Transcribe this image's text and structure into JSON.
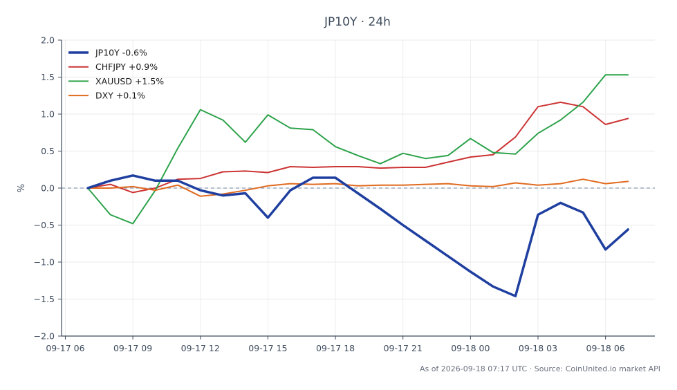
{
  "chart_data": {
    "type": "line",
    "title": "JP10Y · 24h",
    "xlabel": "",
    "ylabel": "%",
    "ylim": [
      -2.0,
      2.0
    ],
    "yticks": [
      "2.0",
      "1.5",
      "1.0",
      "0.5",
      "0.0",
      "−0.5",
      "−1.0",
      "−1.5",
      "−2.0"
    ],
    "ytick_values": [
      2.0,
      1.5,
      1.0,
      0.5,
      0.0,
      -0.5,
      -1.0,
      -1.5,
      -2.0
    ],
    "xticks": [
      "09-17 06",
      "09-17 09",
      "09-17 12",
      "09-17 15",
      "09-17 18",
      "09-17 21",
      "09-18 00",
      "09-18 03",
      "09-18 06"
    ],
    "grid": true,
    "zero_line": true,
    "legend_position": "top-left",
    "x": [
      "09-17 07",
      "09-17 08",
      "09-17 09",
      "09-17 10",
      "09-17 11",
      "09-17 12",
      "09-17 13",
      "09-17 14",
      "09-17 15",
      "09-17 16",
      "09-17 17",
      "09-17 18",
      "09-17 19",
      "09-17 20",
      "09-17 21",
      "09-17 22",
      "09-17 23",
      "09-18 00",
      "09-18 01",
      "09-18 02",
      "09-18 03",
      "09-18 04",
      "09-18 05",
      "09-18 06",
      "09-18 07"
    ],
    "series": [
      {
        "name": "JP10Y -0.6%",
        "color": "#1f3fa0",
        "width": 3.5,
        "values": [
          0.0,
          0.1,
          0.17,
          0.1,
          0.1,
          -0.03,
          -0.1,
          -0.07,
          -0.4,
          -0.03,
          0.14,
          0.14,
          -0.07,
          -0.28,
          -0.5,
          -0.71,
          -0.92,
          -1.13,
          -1.33,
          -1.46,
          -0.36,
          -0.2,
          -0.33,
          -0.83,
          -0.56
        ]
      },
      {
        "name": "CHFJPY +0.9%",
        "color": "#cc3333",
        "width": 2,
        "values": [
          0.0,
          0.05,
          -0.06,
          0.0,
          0.12,
          0.13,
          0.22,
          0.23,
          0.21,
          0.29,
          0.28,
          0.29,
          0.29,
          0.27,
          0.28,
          0.28,
          0.35,
          0.42,
          0.45,
          0.69,
          1.1,
          1.16,
          1.1,
          0.86,
          0.94
        ]
      },
      {
        "name": "XAUUSD +1.5%",
        "color": "#2ca24a",
        "width": 2,
        "values": [
          0.0,
          -0.36,
          -0.48,
          -0.03,
          0.54,
          1.06,
          0.92,
          0.62,
          0.99,
          0.81,
          0.79,
          0.56,
          0.44,
          0.33,
          0.47,
          0.4,
          0.44,
          0.67,
          0.48,
          0.46,
          0.74,
          0.92,
          1.16,
          1.53,
          1.53
        ]
      },
      {
        "name": "DXY +0.1%",
        "color": "#e06a1f",
        "width": 2,
        "values": [
          0.0,
          0.0,
          0.02,
          -0.03,
          0.04,
          -0.11,
          -0.08,
          -0.03,
          0.03,
          0.06,
          0.05,
          0.06,
          0.03,
          0.04,
          0.04,
          0.05,
          0.06,
          0.03,
          0.02,
          0.07,
          0.04,
          0.06,
          0.12,
          0.06,
          0.09
        ]
      }
    ]
  },
  "footer": "As of 2026-09-18 07:17 UTC · Source: CoinUnited.io market API"
}
